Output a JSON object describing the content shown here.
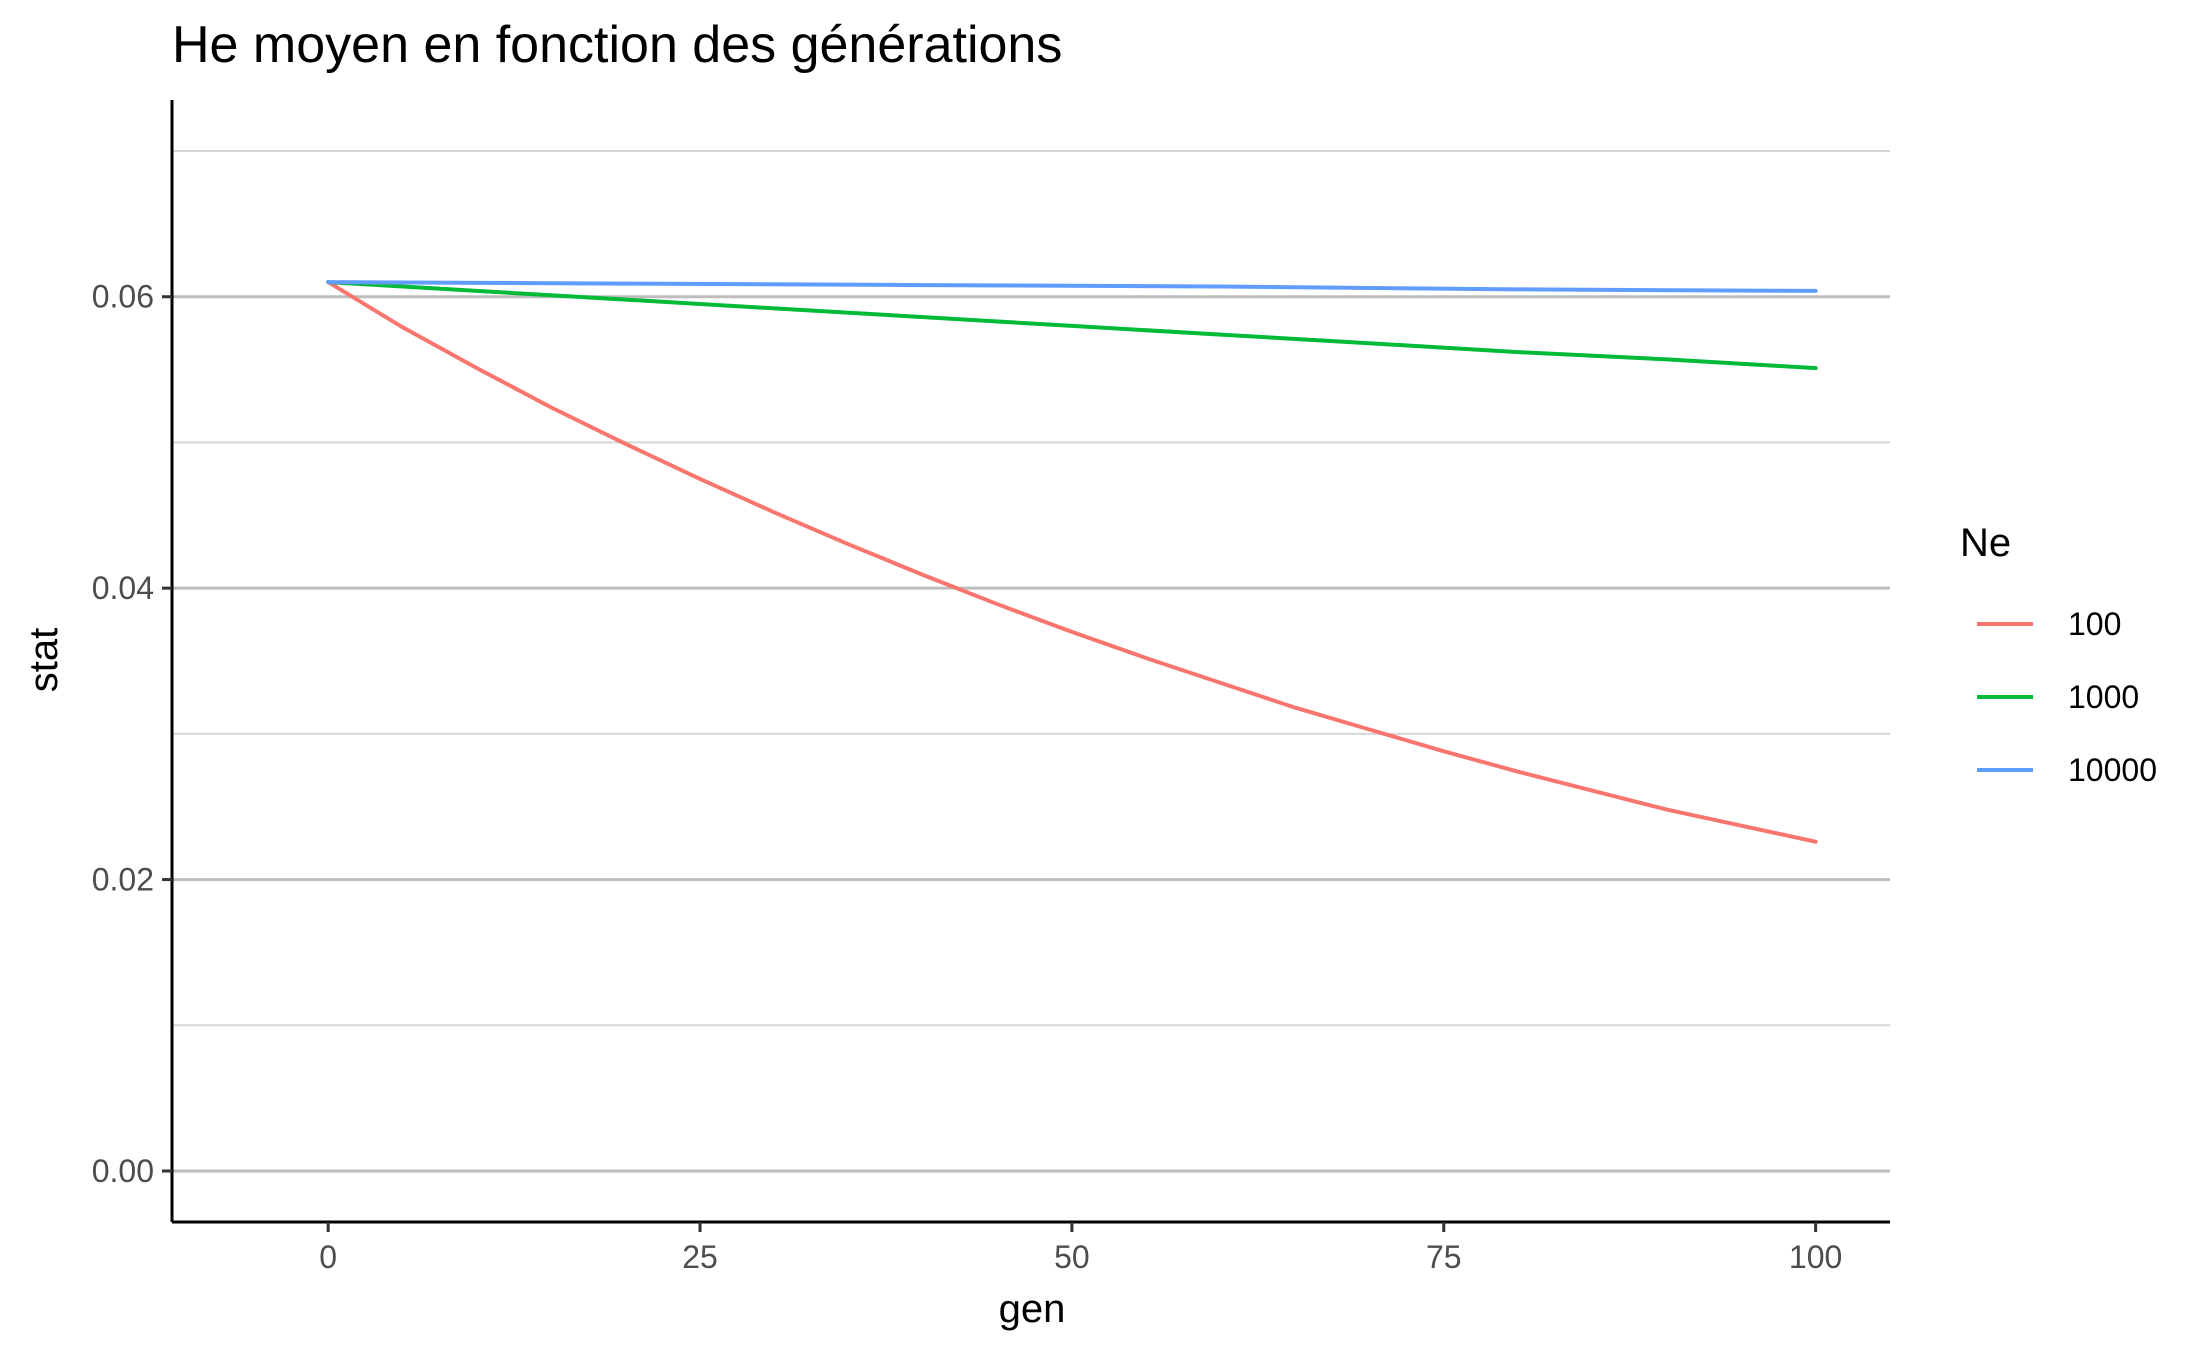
{
  "chart_data": {
    "type": "line",
    "title": "He moyen en fonction des générations",
    "xlabel": "gen",
    "ylabel": "stat",
    "xlim": [
      -10.5,
      105
    ],
    "ylim": [
      -0.0035,
      0.0735
    ],
    "x_ticks": [
      0,
      25,
      50,
      75,
      100
    ],
    "x_tick_labels": [
      "0",
      "25",
      "50",
      "75",
      "100"
    ],
    "y_ticks": [
      0,
      0.02,
      0.04,
      0.06
    ],
    "y_tick_labels": [
      "0.00",
      "0.02",
      "0.04",
      "0.06"
    ],
    "y_minor_grid": [
      0.01,
      0.03,
      0.05,
      0.07
    ],
    "grid": "horizontal",
    "legend": {
      "title": "Ne",
      "placement": "right"
    },
    "series": [
      {
        "name": "100",
        "color": "#F8766D",
        "x": [
          0,
          5,
          10,
          15,
          20,
          25,
          30,
          35,
          40,
          45,
          50,
          55,
          60,
          65,
          70,
          75,
          80,
          85,
          90,
          95,
          100
        ],
        "y": [
          0.061,
          0.0579,
          0.0551,
          0.0524,
          0.0499,
          0.0475,
          0.0452,
          0.043,
          0.0409,
          0.0389,
          0.037,
          0.0352,
          0.0335,
          0.0318,
          0.0303,
          0.0288,
          0.0274,
          0.0261,
          0.0248,
          0.0237,
          0.0226
        ]
      },
      {
        "name": "1000",
        "color": "#00BA38",
        "x": [
          0,
          10,
          20,
          30,
          40,
          50,
          60,
          70,
          80,
          90,
          100
        ],
        "y": [
          0.061,
          0.0604,
          0.0598,
          0.0592,
          0.0586,
          0.058,
          0.0574,
          0.0568,
          0.0562,
          0.0557,
          0.0551
        ]
      },
      {
        "name": "10000",
        "color": "#619CFF",
        "x": [
          0,
          20,
          40,
          60,
          80,
          100
        ],
        "y": [
          0.061,
          0.0609,
          0.0608,
          0.0607,
          0.0605,
          0.0604
        ]
      }
    ]
  }
}
